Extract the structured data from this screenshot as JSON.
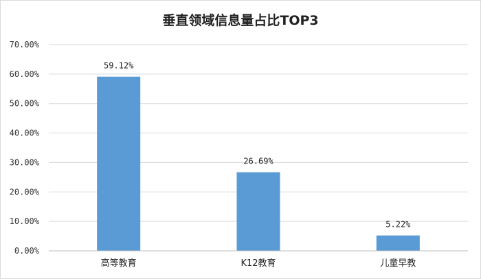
{
  "chart_data": {
    "type": "bar",
    "title": "垂直领域信息量占比TOP3",
    "categories": [
      "高等教育",
      "K12教育",
      "儿童早教"
    ],
    "values": [
      59.12,
      26.69,
      5.22
    ],
    "value_labels": [
      "59.12%",
      "26.69%",
      "5.22%"
    ],
    "ylim": [
      0,
      70
    ],
    "yticks": [
      0,
      10,
      20,
      30,
      40,
      50,
      60,
      70
    ],
    "ytick_labels": [
      "0.00%",
      "10.00%",
      "20.00%",
      "30.00%",
      "40.00%",
      "50.00%",
      "60.00%",
      "70.00%"
    ],
    "grid": true,
    "legend": "none",
    "xlabel": "",
    "ylabel": "",
    "bar_color": "#5b9bd5",
    "grid_color": "#d9d9d9"
  }
}
